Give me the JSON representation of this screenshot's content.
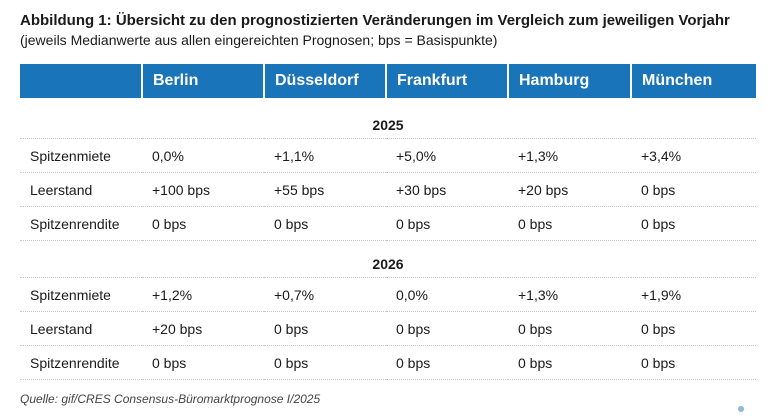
{
  "title": "Abbildung 1: Übersicht zu den prognostizierten Veränderungen im Vergleich zum jeweiligen Vorjahr",
  "subtitle": "(jeweils Medianwerte aus allen eingereichten Prognosen; bps = Basispunkte)",
  "table": {
    "columns": [
      "",
      "Berlin",
      "Düsseldorf",
      "Frankfurt",
      "Hamburg",
      "München"
    ],
    "sections": [
      {
        "year": "2025",
        "rows": [
          {
            "label": "Spitzenmiete",
            "values": [
              "0,0%",
              "+1,1%",
              "+5,0%",
              "+1,3%",
              "+3,4%"
            ]
          },
          {
            "label": "Leerstand",
            "values": [
              "+100 bps",
              "+55 bps",
              "+30 bps",
              "+20 bps",
              "0 bps"
            ]
          },
          {
            "label": "Spitzenrendite",
            "values": [
              "0 bps",
              "0 bps",
              "0 bps",
              "0 bps",
              "0 bps"
            ]
          }
        ]
      },
      {
        "year": "2026",
        "rows": [
          {
            "label": "Spitzenmiete",
            "values": [
              "+1,2%",
              "+0,7%",
              "0,0%",
              "+1,3%",
              "+1,9%"
            ]
          },
          {
            "label": "Leerstand",
            "values": [
              "+20 bps",
              "0 bps",
              "0 bps",
              "0 bps",
              "0 bps"
            ]
          },
          {
            "label": "Spitzenrendite",
            "values": [
              "0 bps",
              "0 bps",
              "0 bps",
              "0 bps",
              "0 bps"
            ]
          }
        ]
      }
    ]
  },
  "source": "Quelle: gif/CRES Consensus-Büromarktprognose I/2025",
  "colors": {
    "header_bg": "#1a74ba",
    "header_text": "#ffffff"
  }
}
